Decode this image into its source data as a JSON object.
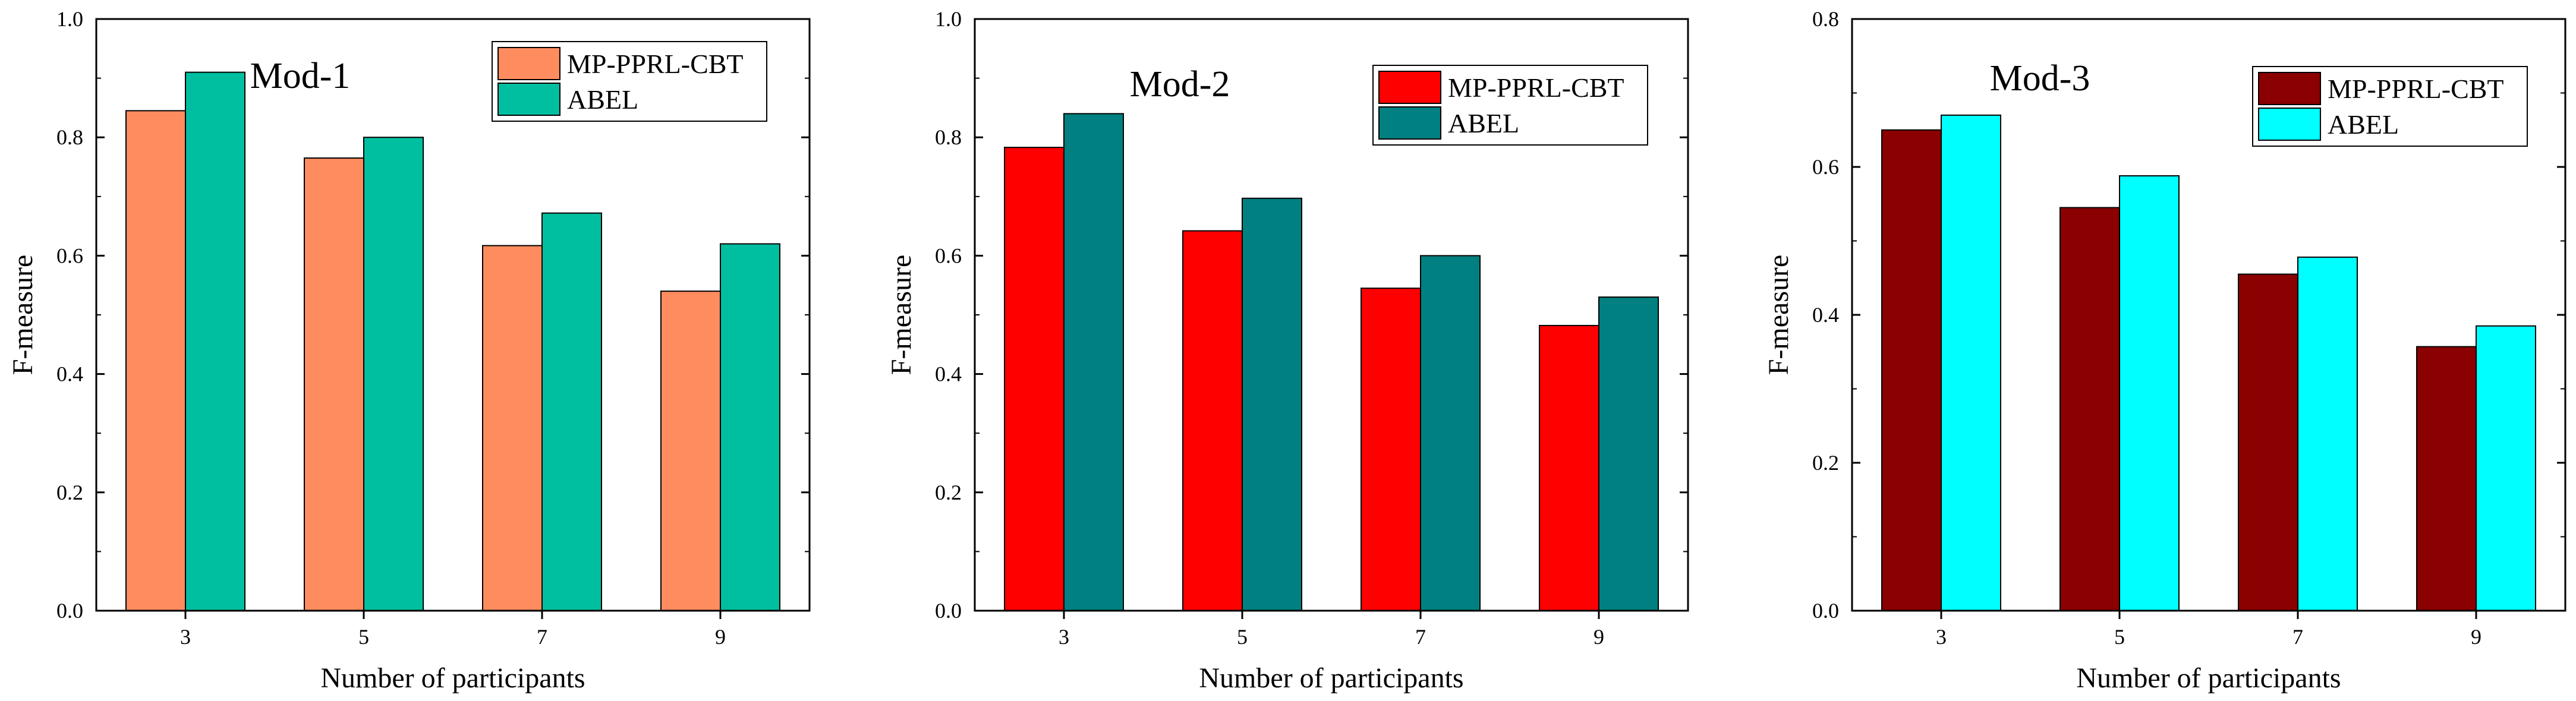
{
  "chart_data": [
    {
      "type": "bar",
      "title": "Mod-1",
      "xlabel": "Number of participants",
      "ylabel": "F-measure",
      "categories": [
        "3",
        "5",
        "7",
        "9"
      ],
      "ylim": [
        0,
        1.0
      ],
      "yticks": [
        0.0,
        0.2,
        0.4,
        0.6,
        0.8,
        1.0
      ],
      "ytick_labels": [
        "0.0",
        "0.2",
        "0.4",
        "0.6",
        "0.8",
        "1.0"
      ],
      "legend_position": "top-right",
      "series": [
        {
          "name": "MP-PPRL-CBT",
          "color": "#FF8C5F",
          "values": [
            0.845,
            0.765,
            0.617,
            0.54
          ]
        },
        {
          "name": "ABEL",
          "color": "#00BFA0",
          "values": [
            0.91,
            0.8,
            0.672,
            0.62
          ]
        }
      ]
    },
    {
      "type": "bar",
      "title": "Mod-2",
      "xlabel": "Number of participants",
      "ylabel": "F-measure",
      "categories": [
        "3",
        "5",
        "7",
        "9"
      ],
      "ylim": [
        0,
        1.0
      ],
      "yticks": [
        0.0,
        0.2,
        0.4,
        0.6,
        0.8,
        1.0
      ],
      "ytick_labels": [
        "0.0",
        "0.2",
        "0.4",
        "0.6",
        "0.8",
        "1.0"
      ],
      "legend_position": "top-right",
      "series": [
        {
          "name": "MP-PPRL-CBT",
          "color": "#FF0000",
          "values": [
            0.783,
            0.642,
            0.545,
            0.482
          ]
        },
        {
          "name": "ABEL",
          "color": "#008080",
          "values": [
            0.84,
            0.697,
            0.6,
            0.53
          ]
        }
      ]
    },
    {
      "type": "bar",
      "title": "Mod-3",
      "xlabel": "Number of participants",
      "ylabel": "F-measure",
      "categories": [
        "3",
        "5",
        "7",
        "9"
      ],
      "ylim": [
        0,
        0.8
      ],
      "yticks": [
        0.0,
        0.2,
        0.4,
        0.6,
        0.8
      ],
      "ytick_labels": [
        "0.0",
        "0.2",
        "0.4",
        "0.6",
        "0.8"
      ],
      "legend_position": "top-right",
      "series": [
        {
          "name": "MP-PPRL-CBT",
          "color": "#8B0000",
          "values": [
            0.65,
            0.545,
            0.455,
            0.357
          ]
        },
        {
          "name": "ABEL",
          "color": "#00FFFF",
          "values": [
            0.67,
            0.588,
            0.478,
            0.385
          ]
        }
      ]
    }
  ]
}
